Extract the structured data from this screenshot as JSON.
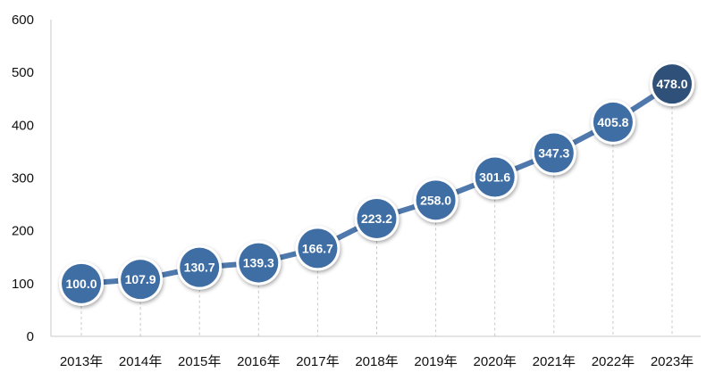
{
  "chart_data": {
    "type": "line",
    "categories": [
      "2013年",
      "2014年",
      "2015年",
      "2016年",
      "2017年",
      "2018年",
      "2019年",
      "2020年",
      "2021年",
      "2022年",
      "2023年"
    ],
    "series": [
      {
        "values": [
          100.0,
          107.9,
          130.7,
          139.3,
          166.7,
          223.2,
          258.0,
          301.6,
          347.3,
          405.8,
          478.0
        ]
      }
    ],
    "data_labels": [
      "100.0",
      "107.9",
      "130.7",
      "139.3",
      "166.7",
      "223.2",
      "258.0",
      "301.6",
      "347.3",
      "405.8",
      "478.0"
    ],
    "yticks": [
      "0",
      "100",
      "200",
      "300",
      "400",
      "500",
      "600"
    ],
    "ylim": [
      0,
      600
    ],
    "grid": false,
    "colors": {
      "line": "#4f79ad",
      "marker": "#3f6ea5",
      "marker_last": "#2f5179",
      "marker_ring": "#ffffff",
      "axis": "#c9c9c9"
    }
  }
}
